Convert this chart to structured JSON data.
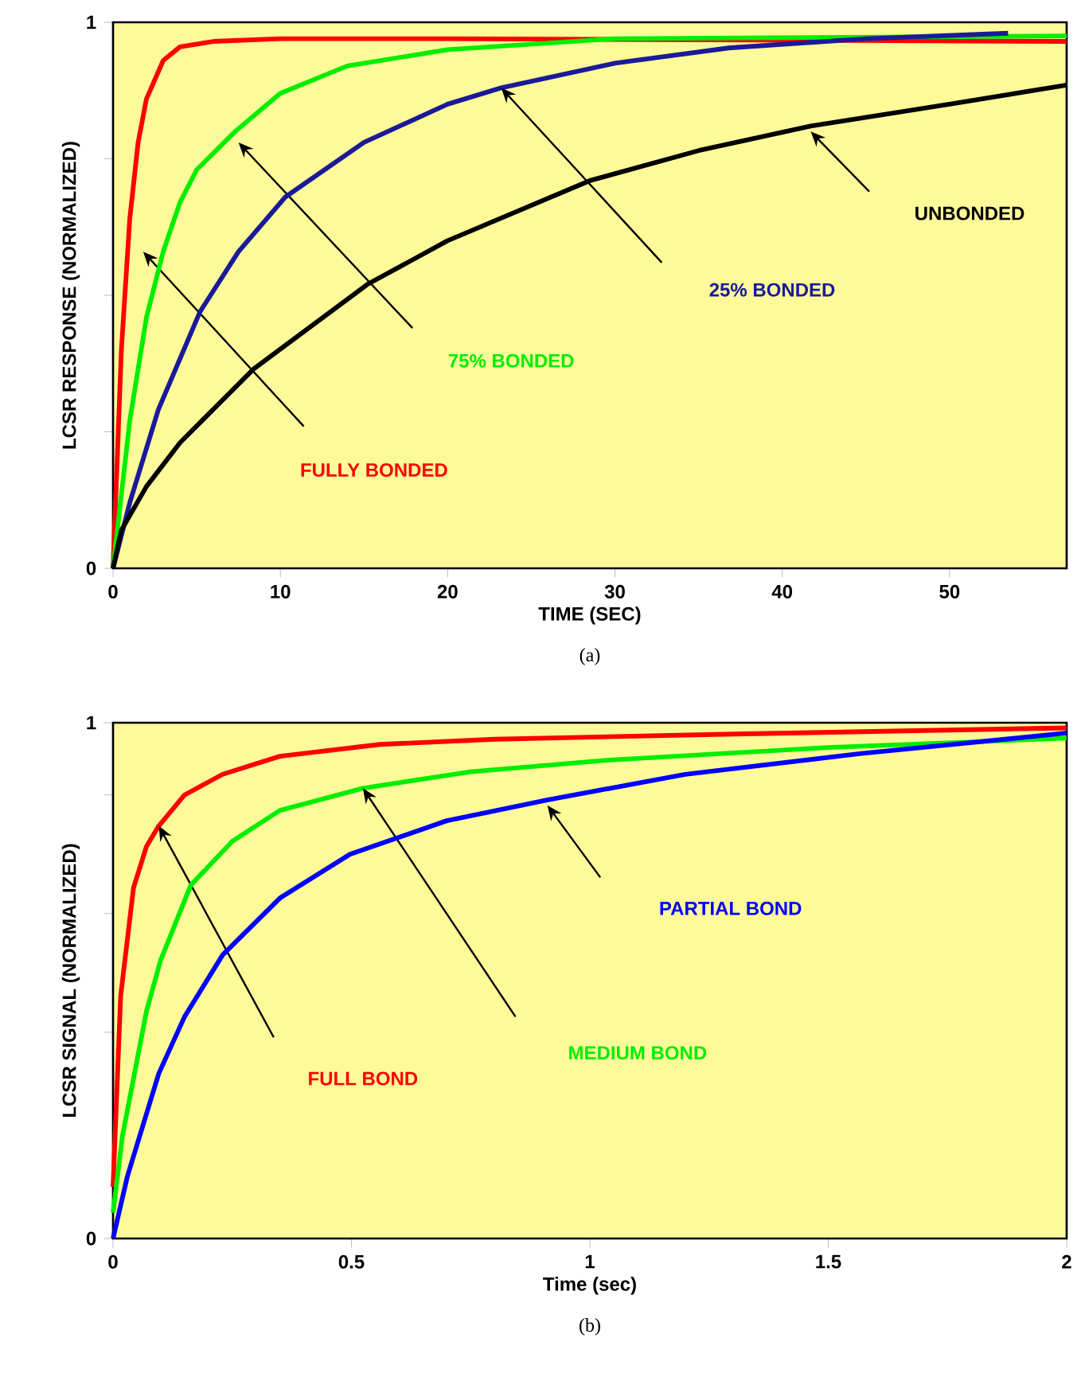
{
  "chart_data": [
    {
      "type": "line",
      "xlabel": "TIME (SEC)",
      "ylabel": "LCSR RESPONSE (NORMALIZED)",
      "annotations": [
        "(a)"
      ],
      "xlim": [
        0,
        57
      ],
      "ylim": [
        0,
        1
      ],
      "xticks": [
        0,
        10,
        20,
        30,
        40,
        50
      ],
      "yticks": [
        0,
        {
          "value": 0.25,
          "label": null
        },
        {
          "value": 0.5,
          "label": null
        },
        {
          "value": 0.75,
          "label": null
        },
        1
      ],
      "marker": "none",
      "line_style": "solid",
      "series": [
        {
          "name": "FULLY BONDED",
          "color": "#ff0000",
          "x": [
            0,
            0.5,
            1,
            1.5,
            2,
            3,
            4,
            6,
            10,
            20,
            57
          ],
          "values": [
            0,
            0.4,
            0.64,
            0.78,
            0.86,
            0.93,
            0.955,
            0.965,
            0.97,
            0.97,
            0.965
          ]
        },
        {
          "name": "75% BONDED",
          "color": "#00ee00",
          "x": [
            0,
            1,
            2,
            3,
            4,
            5,
            7.3,
            10,
            14,
            20,
            30,
            57
          ],
          "values": [
            0,
            0.27,
            0.46,
            0.58,
            0.67,
            0.73,
            0.8,
            0.87,
            0.92,
            0.95,
            0.97,
            0.975
          ]
        },
        {
          "name": "25% BONDED",
          "color": "#1a1a99",
          "x": [
            0,
            1,
            2.7,
            5.2,
            7.5,
            10.3,
            15,
            20,
            23.2,
            30,
            36.8,
            45,
            53.5
          ],
          "values": [
            0,
            0.12,
            0.29,
            0.47,
            0.58,
            0.68,
            0.78,
            0.85,
            0.88,
            0.925,
            0.953,
            0.97,
            0.98
          ]
        },
        {
          "name": "UNBONDED",
          "color": "#000000",
          "x": [
            0,
            0.5,
            2,
            4,
            8.4,
            15.2,
            20,
            28.5,
            35,
            41.7,
            50,
            57
          ],
          "values": [
            0,
            0.07,
            0.15,
            0.23,
            0.365,
            0.52,
            0.6,
            0.71,
            0.765,
            0.81,
            0.85,
            0.885
          ]
        }
      ]
    },
    {
      "type": "line",
      "xlabel": "Time (sec)",
      "ylabel": "LCSR SIGNAL (NORMALIZED)",
      "annotations": [
        "(b)"
      ],
      "xlim": [
        0,
        2
      ],
      "ylim": [
        0,
        1
      ],
      "xticks": [
        0,
        0.5,
        1,
        1.5,
        2
      ],
      "yticks": [
        0,
        {
          "value": 0.4,
          "label": null
        },
        {
          "value": 0.63,
          "label": null
        },
        {
          "value": 0.86,
          "label": null
        },
        1
      ],
      "marker": "none",
      "line_style": "solid",
      "series": [
        {
          "name": "FULL BOND",
          "color": "#ff0000",
          "x": [
            0,
            0.016,
            0.043,
            0.07,
            0.096,
            0.15,
            0.23,
            0.35,
            0.56,
            0.8,
            1.3,
            2
          ],
          "values": [
            0.1,
            0.47,
            0.68,
            0.76,
            0.8,
            0.86,
            0.9,
            0.935,
            0.958,
            0.968,
            0.978,
            0.99
          ]
        },
        {
          "name": "MEDIUM BOND",
          "color": "#00ee00",
          "x": [
            0,
            0.02,
            0.07,
            0.1,
            0.163,
            0.25,
            0.35,
            0.524,
            0.75,
            1.03,
            1.5,
            2
          ],
          "values": [
            0.05,
            0.2,
            0.44,
            0.54,
            0.685,
            0.77,
            0.83,
            0.873,
            0.905,
            0.927,
            0.952,
            0.97
          ]
        },
        {
          "name": "PARTIAL BOND",
          "color": "#0000ff",
          "x": [
            0,
            0.03,
            0.096,
            0.15,
            0.23,
            0.35,
            0.497,
            0.7,
            0.91,
            1.2,
            1.566,
            2
          ],
          "values": [
            0,
            0.12,
            0.32,
            0.43,
            0.55,
            0.66,
            0.745,
            0.81,
            0.85,
            0.9,
            0.94,
            0.98
          ]
        }
      ]
    }
  ]
}
